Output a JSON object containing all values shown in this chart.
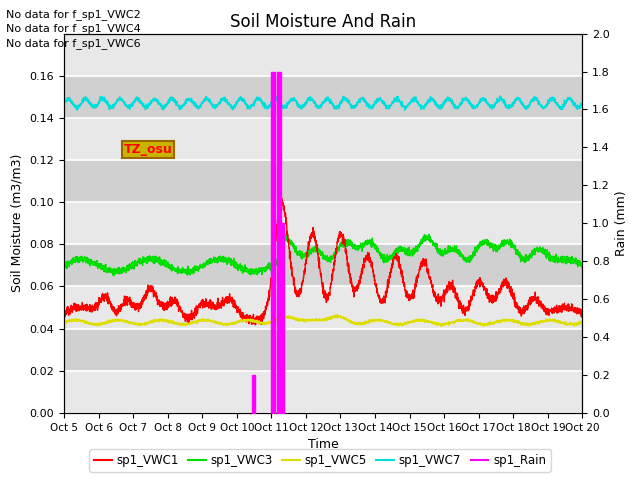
{
  "title": "Soil Moisture And Rain",
  "ylabel_left": "Soil Moisture (m3/m3)",
  "ylabel_right": "Rain (mm)",
  "xlabel": "Time",
  "xlim": [
    0,
    15
  ],
  "ylim_left": [
    0.0,
    0.18
  ],
  "ylim_right": [
    0.0,
    2.0
  ],
  "xtick_labels": [
    "Oct 5",
    "Oct 6",
    "Oct 7",
    "Oct 8",
    "Oct 9",
    "Oct 10",
    "Oct 11",
    "Oct 12",
    "Oct 13",
    "Oct 14",
    "Oct 15",
    "Oct 16",
    "Oct 17",
    "Oct 18",
    "Oct 19",
    "Oct 20"
  ],
  "no_data_text": [
    "No data for f_sp1_VWC2",
    "No data for f_sp1_VWC4",
    "No data for f_sp1_VWC6"
  ],
  "tz_label": "TZ_osu",
  "colors": {
    "VWC1": "#ff0000",
    "VWC3": "#00dd00",
    "VWC5": "#dddd00",
    "VWC7": "#00dddd",
    "Rain": "#ff00ff"
  },
  "background_color": "#dcdcdc",
  "alt_background_color": "#e8e8e8"
}
